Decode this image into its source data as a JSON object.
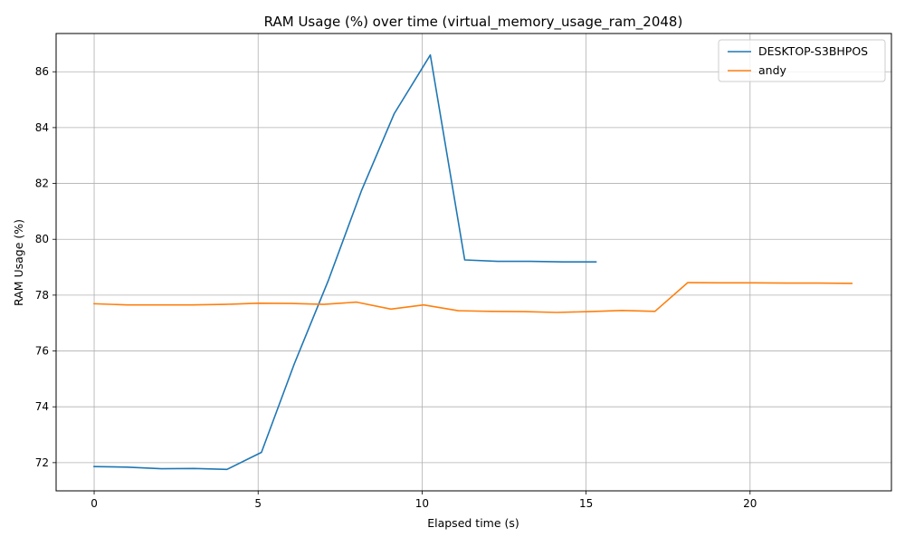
{
  "chart_data": {
    "type": "line",
    "title": "RAM Usage (%) over time (virtual_memory_usage_ram_2048)",
    "xlabel": "Elapsed time (s)",
    "ylabel": "RAM Usage (%)",
    "xlim": [
      -1.16,
      24.31
    ],
    "ylim": [
      70.99,
      87.37
    ],
    "xticks": [
      0,
      5,
      10,
      15,
      20
    ],
    "yticks": [
      72,
      74,
      76,
      78,
      80,
      82,
      84,
      86
    ],
    "grid": true,
    "legend_position": "upper right",
    "series": [
      {
        "name": "DESKTOP-S3BHPOS",
        "color": "#1f77b4",
        "x": [
          0.0,
          1.0,
          2.05,
          3.05,
          4.05,
          5.1,
          6.1,
          7.15,
          8.15,
          9.15,
          10.25,
          11.3,
          12.3,
          13.3,
          14.3,
          15.3
        ],
        "y": [
          71.86,
          71.84,
          71.78,
          71.79,
          71.76,
          72.37,
          75.53,
          78.55,
          81.74,
          84.5,
          86.6,
          79.26,
          79.21,
          79.21,
          79.19,
          79.19
        ]
      },
      {
        "name": "andy",
        "color": "#ff7f0e",
        "x": [
          0.0,
          1.0,
          2.0,
          3.0,
          4.0,
          5.0,
          6.0,
          7.0,
          8.0,
          9.05,
          10.05,
          11.1,
          12.1,
          13.1,
          14.1,
          15.1,
          16.1,
          17.1,
          18.1,
          19.1,
          20.1,
          21.1,
          22.1,
          23.1
        ],
        "y": [
          77.69,
          77.65,
          77.65,
          77.65,
          77.67,
          77.71,
          77.7,
          77.67,
          77.75,
          77.5,
          77.65,
          77.44,
          77.42,
          77.41,
          77.38,
          77.41,
          77.45,
          77.42,
          78.45,
          78.44,
          78.44,
          78.43,
          78.43,
          78.42
        ]
      }
    ]
  }
}
